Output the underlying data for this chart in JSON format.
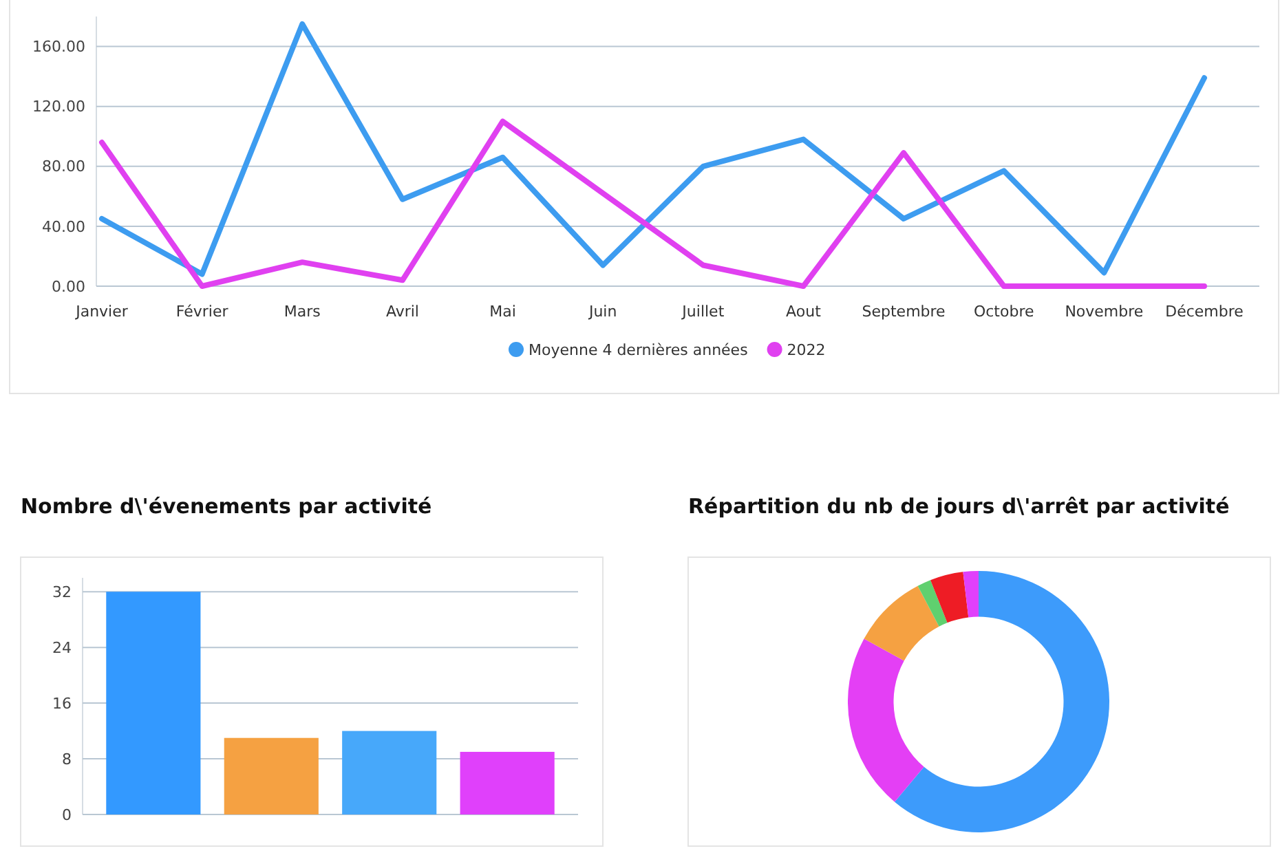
{
  "chart_data": [
    {
      "type": "line",
      "categories": [
        "Janvier",
        "Février",
        "Mars",
        "Avril",
        "Mai",
        "Juin",
        "Juillet",
        "Aout",
        "Septembre",
        "Octobre",
        "Novembre",
        "Décembre"
      ],
      "series": [
        {
          "name": "Moyenne 4 dernières années",
          "color": "#3d9cf0",
          "values": [
            45,
            8,
            175,
            58,
            86,
            14,
            80,
            98,
            45,
            77,
            9,
            139
          ]
        },
        {
          "name": "2022",
          "color": "#e040f0",
          "values": [
            96,
            0,
            16,
            4,
            110,
            62,
            14,
            0,
            89,
            0,
            0,
            0
          ]
        }
      ],
      "ylim": [
        0,
        180
      ],
      "yticks": [
        {
          "value": 0,
          "label": "0.00"
        },
        {
          "value": 40,
          "label": "40.00"
        },
        {
          "value": 80,
          "label": "80.00"
        },
        {
          "value": 120,
          "label": "120.00"
        },
        {
          "value": 160,
          "label": "160.00"
        }
      ],
      "grid": "y",
      "legend": "bottom",
      "marker": "none",
      "line_style": "solid"
    },
    {
      "type": "bar",
      "title": "Nombre d\\'évenements par activité",
      "categories": [
        null,
        null,
        null,
        null
      ],
      "values": [
        32,
        11,
        12,
        9
      ],
      "colors": [
        "#3399ff",
        "#f5a142",
        "#47a8fa",
        "#e040fb"
      ],
      "ylim": [
        0,
        34
      ],
      "yticks": [
        0,
        8,
        16,
        24,
        32
      ],
      "grid": "y"
    },
    {
      "type": "donut",
      "title": "Répartition du nb de jours d\\'arrêt par activité",
      "categories": [
        null,
        null,
        null,
        null,
        null,
        null
      ],
      "values": [
        61.1,
        21.9,
        9.3,
        1.7,
        4.1,
        1.9
      ],
      "colors": [
        "#3d9bfb",
        "#e43ff5",
        "#f5a142",
        "#5fd06f",
        "#ee1c25",
        "#e040fb"
      ]
    }
  ]
}
